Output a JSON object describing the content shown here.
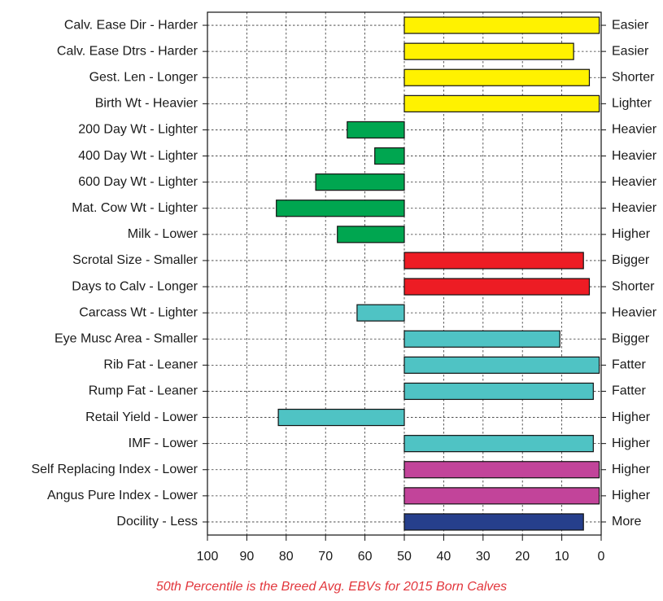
{
  "chart_data": {
    "type": "bar",
    "orientation": "horizontal",
    "caption": "50th Percentile is the Breed Avg. EBVs for 2015 Born Calves",
    "xlim": [
      100,
      0
    ],
    "x_ticks": [
      100,
      90,
      80,
      70,
      60,
      50,
      40,
      30,
      20,
      10,
      0
    ],
    "baseline": 50,
    "grid": true,
    "colors": {
      "yellow": "#fff200",
      "green": "#00a650",
      "red": "#ed1c24",
      "teal": "#4fc3c4",
      "magenta": "#c2449a",
      "navy": "#263f8c"
    },
    "traits": [
      {
        "left": "Calv. Ease Dir - Harder",
        "right": "Easier",
        "value": 0.5,
        "color": "yellow"
      },
      {
        "left": "Calv. Ease Dtrs - Harder",
        "right": "Easier",
        "value": 7,
        "color": "yellow"
      },
      {
        "left": "Gest. Len - Longer",
        "right": "Shorter",
        "value": 3,
        "color": "yellow"
      },
      {
        "left": "Birth Wt - Heavier",
        "right": "Lighter",
        "value": 0.5,
        "color": "yellow"
      },
      {
        "left": "200 Day Wt - Lighter",
        "right": "Heavier",
        "value": 64.5,
        "color": "green"
      },
      {
        "left": "400 Day Wt - Lighter",
        "right": "Heavier",
        "value": 57.5,
        "color": "green"
      },
      {
        "left": "600 Day Wt - Lighter",
        "right": "Heavier",
        "value": 72.5,
        "color": "green"
      },
      {
        "left": "Mat. Cow Wt - Lighter",
        "right": "Heavier",
        "value": 82.5,
        "color": "green"
      },
      {
        "left": "Milk - Lower",
        "right": "Higher",
        "value": 67,
        "color": "green"
      },
      {
        "left": "Scrotal Size - Smaller",
        "right": "Bigger",
        "value": 4.5,
        "color": "red"
      },
      {
        "left": "Days to Calv - Longer",
        "right": "Shorter",
        "value": 3,
        "color": "red"
      },
      {
        "left": "Carcass Wt - Lighter",
        "right": "Heavier",
        "value": 62,
        "color": "teal"
      },
      {
        "left": "Eye Musc Area - Smaller",
        "right": "Bigger",
        "value": 10.5,
        "color": "teal"
      },
      {
        "left": "Rib Fat - Leaner",
        "right": "Fatter",
        "value": 0.5,
        "color": "teal"
      },
      {
        "left": "Rump Fat - Leaner",
        "right": "Fatter",
        "value": 2,
        "color": "teal"
      },
      {
        "left": "Retail Yield - Lower",
        "right": "Higher",
        "value": 82,
        "color": "teal"
      },
      {
        "left": "IMF - Lower",
        "right": "Higher",
        "value": 2,
        "color": "teal"
      },
      {
        "left": "Self Replacing Index - Lower",
        "right": "Higher",
        "value": 0.5,
        "color": "magenta"
      },
      {
        "left": "Angus Pure Index - Lower",
        "right": "Higher",
        "value": 0.5,
        "color": "magenta"
      },
      {
        "left": "Docility - Less",
        "right": "More",
        "value": 4.5,
        "color": "navy"
      }
    ]
  }
}
